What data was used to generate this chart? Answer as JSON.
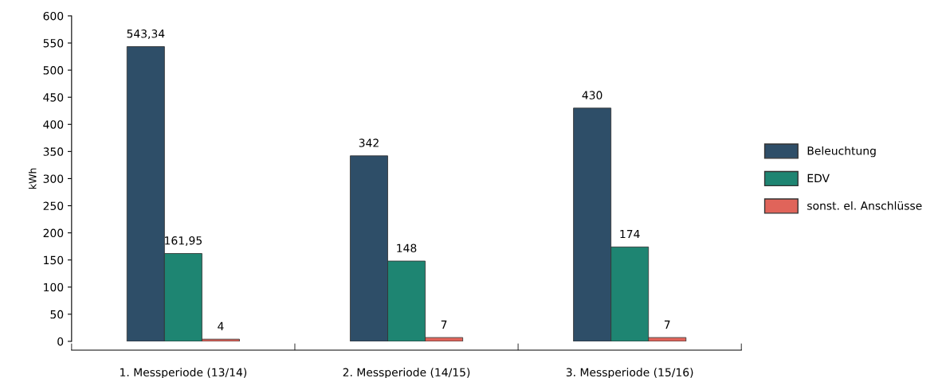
{
  "chart_data": {
    "type": "bar",
    "ylabel": "kWh",
    "categories": [
      "1. Messperiode (13/14)",
      "2. Messperiode (14/15)",
      "3. Messperiode (15/16)"
    ],
    "series": [
      {
        "name": "Beleuchtung",
        "color": "#2e4e68",
        "values": [
          543.34,
          342,
          430
        ],
        "value_labels": [
          "543,34",
          "342",
          "430"
        ]
      },
      {
        "name": "EDV",
        "color": "#1e8572",
        "values": [
          161.95,
          148,
          174
        ],
        "value_labels": [
          "161,95",
          "148",
          "174"
        ]
      },
      {
        "name": "sonst. el. Anschlüsse",
        "color": "#e0645a",
        "values": [
          4,
          7,
          7
        ],
        "value_labels": [
          "4",
          "7",
          "7"
        ]
      }
    ],
    "ylim": [
      0,
      600
    ],
    "yticks": [
      0,
      50,
      100,
      150,
      200,
      250,
      300,
      350,
      400,
      450,
      500,
      550,
      600
    ],
    "grid": false,
    "legend": "right"
  }
}
